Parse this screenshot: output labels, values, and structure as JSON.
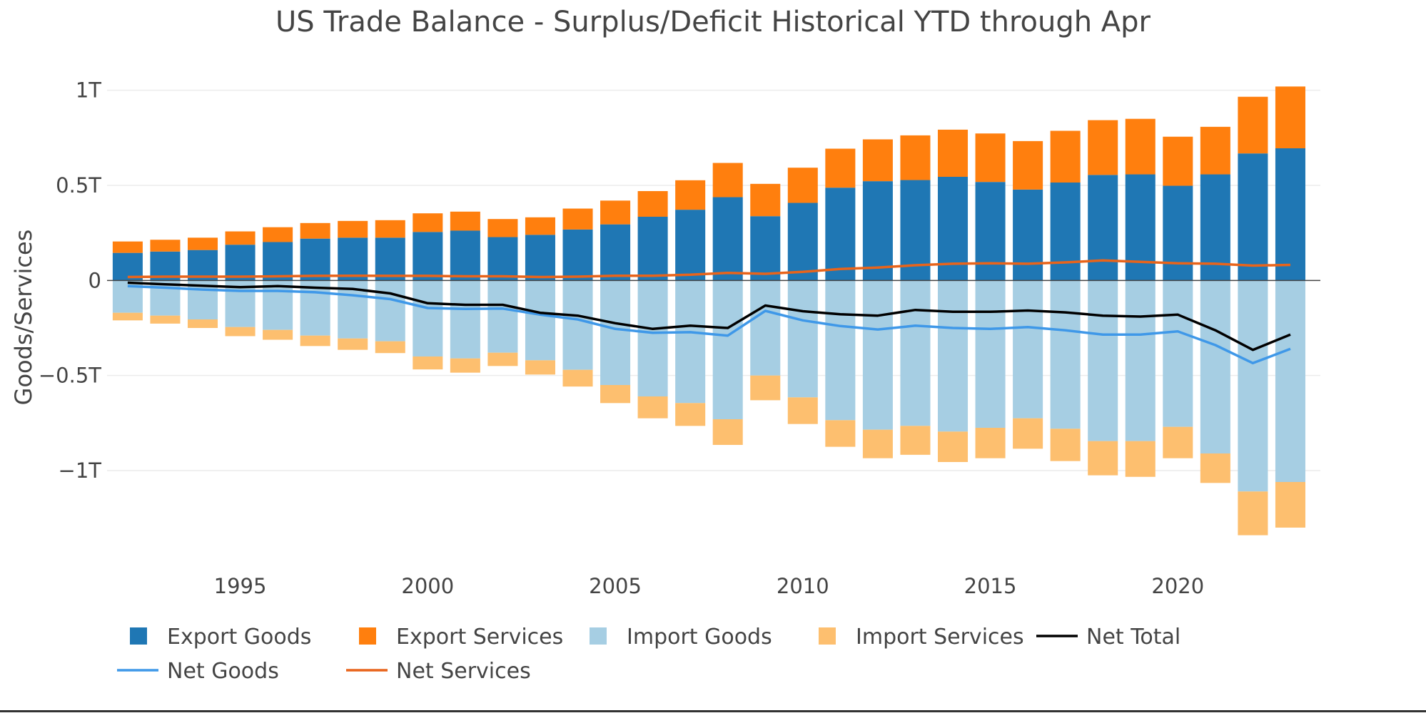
{
  "chart_data": {
    "type": "bar",
    "title": "US Trade Balance - Surplus/Deficit Historical YTD through Apr",
    "xlabel": "",
    "ylabel": "Goods/Services",
    "x": [
      1992,
      1993,
      1994,
      1995,
      1996,
      1997,
      1998,
      1999,
      2000,
      2001,
      2002,
      2003,
      2004,
      2005,
      2006,
      2007,
      2008,
      2009,
      2010,
      2011,
      2012,
      2013,
      2014,
      2015,
      2016,
      2017,
      2018,
      2019,
      2020,
      2021,
      2022,
      2023
    ],
    "x_ticks": [
      1995,
      2000,
      2005,
      2010,
      2015,
      2020
    ],
    "x_tick_labels": [
      "1995",
      "2000",
      "2005",
      "2010",
      "2015",
      "2020"
    ],
    "y_ticks": [
      1000000000000,
      500000000000,
      0,
      -500000000000,
      -1000000000000
    ],
    "y_tick_labels": [
      "1T",
      "0.5T",
      "0",
      "−0.5T",
      "−1T"
    ],
    "ylim": [
      -1450000000000,
      1100000000000
    ],
    "xlim": [
      1991.45,
      2023.8
    ],
    "barmode": "relative",
    "grid": true,
    "legend_position": "bottom",
    "series": [
      {
        "name": "Export Goods",
        "kind": "bar",
        "color": "#1f77b4",
        "values": [
          145,
          152,
          160,
          188,
          202,
          220,
          225,
          225,
          255,
          262,
          228,
          240,
          268,
          295,
          335,
          372,
          438,
          338,
          408,
          488,
          522,
          528,
          545,
          518,
          478,
          515,
          555,
          558,
          498,
          558,
          668,
          695
        ],
        "unit_multiplier": 1000000000
      },
      {
        "name": "Export Services",
        "kind": "bar",
        "color": "#ff7f0e",
        "values": [
          60,
          62,
          65,
          70,
          78,
          82,
          88,
          92,
          98,
          100,
          95,
          92,
          110,
          125,
          135,
          155,
          180,
          170,
          185,
          205,
          220,
          235,
          248,
          255,
          255,
          272,
          288,
          292,
          258,
          250,
          298,
          325
        ],
        "unit_multiplier": 1000000000
      },
      {
        "name": "Import Goods",
        "kind": "bar",
        "color": "#a6cee3",
        "values": [
          -170,
          -185,
          -205,
          -245,
          -260,
          -290,
          -305,
          -320,
          -400,
          -410,
          -380,
          -420,
          -470,
          -550,
          -610,
          -645,
          -730,
          -500,
          -615,
          -735,
          -785,
          -765,
          -795,
          -775,
          -725,
          -780,
          -845,
          -845,
          -770,
          -910,
          -1110,
          -1060
        ],
        "unit_multiplier": 1000000000
      },
      {
        "name": "Import Services",
        "kind": "bar",
        "color": "#fdbf6f",
        "values": [
          -40,
          -42,
          -45,
          -48,
          -52,
          -55,
          -60,
          -62,
          -68,
          -75,
          -70,
          -75,
          -88,
          -95,
          -115,
          -120,
          -135,
          -130,
          -140,
          -140,
          -150,
          -152,
          -160,
          -160,
          -160,
          -170,
          -180,
          -188,
          -165,
          -155,
          -230,
          -240
        ],
        "unit_multiplier": 1000000000
      },
      {
        "name": "Net Total",
        "kind": "line",
        "color": "#000000",
        "values": [
          -12,
          -20,
          -28,
          -35,
          -30,
          -38,
          -45,
          -68,
          -120,
          -128,
          -128,
          -170,
          -185,
          -225,
          -255,
          -238,
          -250,
          -132,
          -162,
          -178,
          -185,
          -155,
          -165,
          -165,
          -158,
          -168,
          -185,
          -190,
          -180,
          -262,
          -365,
          -285
        ],
        "unit_multiplier": 1000000000
      },
      {
        "name": "Net Goods",
        "kind": "line",
        "color": "#3f98e8",
        "values": [
          -30,
          -38,
          -48,
          -55,
          -55,
          -62,
          -78,
          -98,
          -145,
          -150,
          -148,
          -180,
          -205,
          -255,
          -275,
          -272,
          -290,
          -160,
          -210,
          -240,
          -258,
          -238,
          -250,
          -255,
          -245,
          -262,
          -285,
          -285,
          -268,
          -340,
          -435,
          -360
        ],
        "unit_multiplier": 1000000000
      },
      {
        "name": "Net Services",
        "kind": "line",
        "color": "#e8641b",
        "values": [
          18,
          20,
          20,
          20,
          22,
          24,
          25,
          24,
          24,
          22,
          22,
          18,
          20,
          25,
          25,
          30,
          40,
          35,
          45,
          60,
          68,
          80,
          88,
          90,
          88,
          95,
          105,
          98,
          90,
          88,
          78,
          82
        ],
        "unit_multiplier": 1000000000
      }
    ],
    "legend": [
      "Export Goods",
      "Export Services",
      "Import Goods",
      "Import Services",
      "Net Total",
      "Net Goods",
      "Net Services"
    ]
  }
}
